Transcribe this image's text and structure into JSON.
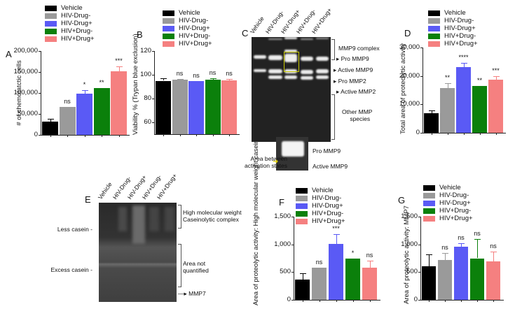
{
  "groups": [
    "Vehicle",
    "HIV-Drug-",
    "HIV-Drug+",
    "HIV+Drug-",
    "HIV+Drug+"
  ],
  "colors": {
    "Vehicle": "#000000",
    "HIV-Drug-": "#9a9a9a",
    "HIV-Drug+": "#5a5af5",
    "HIV+Drug-": "#0b800b",
    "HIV+Drug+": "#f58080"
  },
  "panels": {
    "A": {
      "label": "A"
    },
    "B": {
      "label": "B"
    },
    "C": {
      "label": "C",
      "lanes": [
        "Vehicle",
        "HIV-Drug-",
        "HIV-Drug+",
        "HIV+Drug-",
        "HIV+Drug+"
      ],
      "annotations": [
        "MMP9 complex",
        "Pro MMP9",
        "Active MMP9",
        "Pro MMP2",
        "Active MMP2",
        "Other MMP",
        "species"
      ],
      "inset_left": [
        "Area between",
        "activation states"
      ],
      "inset_right": [
        "Pro MMP9",
        "Active MMP9"
      ]
    },
    "D": {
      "label": "D"
    },
    "E": {
      "label": "E",
      "lanes": [
        "Vehicle",
        "HIV-Drug-",
        "HIV-Drug+",
        "HIV+Drug-",
        "HIV+Drug+"
      ],
      "left": [
        "Less casein",
        "Excess casein"
      ],
      "right": [
        "High molecular weight",
        "Caseinolytic  complex",
        "Area not",
        "quantified",
        "MMP7"
      ]
    },
    "F": {
      "label": "F"
    },
    "G": {
      "label": "G"
    }
  },
  "chart_data": [
    {
      "id": "A",
      "type": "bar",
      "title": "",
      "xlabel": "",
      "ylabel": "# of chemotatctic cells",
      "ylim": [
        0,
        200000
      ],
      "yticks": [
        "0",
        "50,000",
        "100,000",
        "150,000",
        "200,000"
      ],
      "categories": [
        "Vehicle",
        "HIV-Drug-",
        "HIV-Drug+",
        "HIV+Drug-",
        "HIV+Drug+"
      ],
      "values": [
        32000,
        67000,
        98000,
        112000,
        152000
      ],
      "errors": [
        7000,
        0,
        9000,
        0,
        12000
      ],
      "significance": [
        "",
        "ns",
        "*",
        "**",
        "***"
      ],
      "legend_position": "top"
    },
    {
      "id": "B",
      "type": "bar",
      "title": "",
      "xlabel": "",
      "ylabel": "Viability % (Trypan blue exclusion)",
      "ylim": [
        50,
        120
      ],
      "yticks": [
        "60",
        "80",
        "100",
        "120"
      ],
      "categories": [
        "Vehicle",
        "HIV-Drug-",
        "HIV-Drug+",
        "HIV+Drug-",
        "HIV+Drug+"
      ],
      "values": [
        95,
        96,
        94.5,
        96,
        95.5
      ],
      "errors": [
        2,
        0.5,
        0.5,
        1,
        1
      ],
      "significance": [
        "",
        "ns",
        "ns",
        "ns",
        "ns"
      ],
      "legend_position": "top"
    },
    {
      "id": "D",
      "type": "bar",
      "title": "",
      "xlabel": "",
      "ylabel": "Total area of proteolytic activity",
      "ylim": [
        0,
        30000
      ],
      "yticks": [
        "0",
        "10,000",
        "20,000",
        "30,000"
      ],
      "categories": [
        "Vehicle",
        "HIV-Drug-",
        "HIV-Drug+",
        "HIV+Drug-",
        "HIV+Drug+"
      ],
      "values": [
        6800,
        15800,
        23000,
        16500,
        18700
      ],
      "errors": [
        1000,
        1600,
        1500,
        0,
        1300
      ],
      "significance": [
        "",
        "**",
        "****",
        "**",
        "***"
      ],
      "legend_position": "top"
    },
    {
      "id": "F",
      "type": "bar",
      "title": "",
      "xlabel": "",
      "ylabel": "Area of proteolytic activity: High molecular weight caseinolytiv complex",
      "ylim": [
        0,
        1500
      ],
      "yticks": [
        "0",
        "500",
        "1,000",
        "1,500"
      ],
      "categories": [
        "Vehicle",
        "HIV-Drug-",
        "HIV-Drug+",
        "HIV+Drug-",
        "HIV+Drug+"
      ],
      "values": [
        370,
        580,
        1010,
        740,
        580
      ],
      "errors": [
        110,
        0,
        170,
        0,
        130
      ],
      "significance": [
        "",
        "ns",
        "***",
        "*",
        "ns"
      ],
      "legend_position": "top"
    },
    {
      "id": "G",
      "type": "bar",
      "title": "",
      "xlabel": "",
      "ylabel": "Area of proteolytic activity: MMP7",
      "ylim": [
        0,
        1500
      ],
      "yticks": [
        "0",
        "500",
        "1,000",
        "1,500"
      ],
      "categories": [
        "Vehicle",
        "HIV-Drug-",
        "HIV-Drug+",
        "HIV+Drug-",
        "HIV+Drug+"
      ],
      "values": [
        600,
        720,
        960,
        750,
        690
      ],
      "errors": [
        220,
        130,
        60,
        350,
        180
      ],
      "significance": [
        "",
        "ns",
        "ns",
        "ns",
        "ns"
      ],
      "legend_position": "top"
    }
  ]
}
